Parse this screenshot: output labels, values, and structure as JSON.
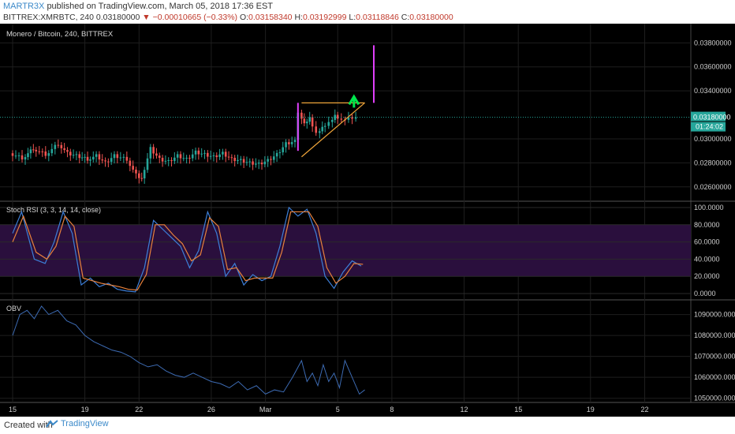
{
  "header": {
    "author": "MARTR3X",
    "published": "published on TradingView.com, March 05, 2018 17:36 EST",
    "symbol": "BITTREX:XMRBTC, 240",
    "last": "0.03180000",
    "change": "−0.00010665 (−0.33%)",
    "open": "0.03158340",
    "high": "0.03192999",
    "low": "0.03118846",
    "close": "0.03180000",
    "o_label": "O:",
    "h_label": "H:",
    "l_label": "L:",
    "c_label": "C:"
  },
  "footer": {
    "created": "Created with",
    "brand": "TradingView"
  },
  "chart_data": [
    {
      "type": "candlestick",
      "title": "Monero / Bitcoin, 240, BITTREX",
      "y_tick_labels": [
        "0.03800000",
        "0.03600000",
        "0.03400000",
        "0.03000000",
        "0.02800000",
        "0.02600000"
      ],
      "y_ticks": [
        0.038,
        0.036,
        0.034,
        0.03,
        0.028,
        0.026
      ],
      "ylim": [
        0.0248,
        0.0396
      ],
      "last_price_label": "0.03180000",
      "last_price": 0.0318,
      "countdown": "01:24:02",
      "x_labels": [
        "15",
        "19",
        "22",
        "26",
        "Mar",
        "5",
        "8",
        "12",
        "15",
        "19",
        "22"
      ],
      "x_day_index": [
        0,
        4,
        7,
        11,
        14,
        18,
        21,
        25,
        28,
        32,
        35
      ],
      "colors": {
        "up": "#26a69a",
        "down": "#ef5350",
        "triangle": "#f0a53a",
        "arrow": "#00e64d",
        "marker": "#e040fb"
      },
      "close_path": [
        [
          0,
          0.0288
        ],
        [
          0.7,
          0.0284
        ],
        [
          1.3,
          0.0292
        ],
        [
          2.0,
          0.0287
        ],
        [
          2.7,
          0.0296
        ],
        [
          3.2,
          0.0288
        ],
        [
          3.7,
          0.0286
        ],
        [
          4.3,
          0.0283
        ],
        [
          4.8,
          0.0286
        ],
        [
          5.3,
          0.028
        ],
        [
          5.8,
          0.0286
        ],
        [
          6.5,
          0.0283
        ],
        [
          7.0,
          0.027
        ],
        [
          7.3,
          0.0267
        ],
        [
          7.8,
          0.0292
        ],
        [
          8.3,
          0.0283
        ],
        [
          8.8,
          0.0281
        ],
        [
          9.3,
          0.0286
        ],
        [
          9.8,
          0.0283
        ],
        [
          10.3,
          0.0289
        ],
        [
          10.8,
          0.0287
        ],
        [
          11.3,
          0.0285
        ],
        [
          11.8,
          0.0288
        ],
        [
          12.3,
          0.0283
        ],
        [
          12.8,
          0.0282
        ],
        [
          13.3,
          0.028
        ],
        [
          13.8,
          0.0279
        ],
        [
          14.3,
          0.0282
        ],
        [
          14.8,
          0.0287
        ],
        [
          15.3,
          0.0296
        ],
        [
          15.8,
          0.0298
        ],
        [
          16.0,
          0.0323
        ],
        [
          16.3,
          0.0313
        ],
        [
          16.6,
          0.0318
        ],
        [
          17.0,
          0.0305
        ],
        [
          17.3,
          0.031
        ],
        [
          17.7,
          0.0314
        ],
        [
          18.0,
          0.032
        ],
        [
          18.4,
          0.0316
        ],
        [
          18.8,
          0.0318
        ]
      ],
      "triangle": {
        "upper": [
          [
            16.0,
            0.033
          ],
          [
            19.5,
            0.033
          ]
        ],
        "lower": [
          [
            16.0,
            0.0285
          ],
          [
            19.5,
            0.033
          ]
        ]
      },
      "spike_marker": {
        "x": 20.0,
        "from": 0.033,
        "to": 0.0378
      },
      "spike_marker_left": {
        "x": 15.8,
        "from": 0.029,
        "to": 0.033
      }
    },
    {
      "type": "line",
      "title": "Stoch RSI (3, 3, 14, 14, close)",
      "y_tick_labels": [
        "100.0000",
        "80.0000",
        "60.0000",
        "40.0000",
        "20.0000",
        "0.0000"
      ],
      "y_ticks": [
        100,
        80,
        60,
        40,
        20,
        0
      ],
      "ylim": [
        0,
        100
      ],
      "band": [
        20,
        80
      ],
      "series": [
        {
          "color": "#3d7fd9",
          "points": [
            [
              0,
              70
            ],
            [
              0.5,
              95
            ],
            [
              1.2,
              40
            ],
            [
              1.8,
              35
            ],
            [
              2.3,
              60
            ],
            [
              2.8,
              95
            ],
            [
              3.3,
              70
            ],
            [
              3.8,
              10
            ],
            [
              4.3,
              18
            ],
            [
              4.8,
              8
            ],
            [
              5.3,
              12
            ],
            [
              5.8,
              5
            ],
            [
              6.3,
              3
            ],
            [
              6.8,
              2
            ],
            [
              7.3,
              30
            ],
            [
              7.8,
              85
            ],
            [
              8.3,
              75
            ],
            [
              8.8,
              65
            ],
            [
              9.3,
              55
            ],
            [
              9.8,
              30
            ],
            [
              10.3,
              50
            ],
            [
              10.8,
              95
            ],
            [
              11.3,
              70
            ],
            [
              11.8,
              20
            ],
            [
              12.3,
              35
            ],
            [
              12.8,
              10
            ],
            [
              13.3,
              22
            ],
            [
              13.8,
              15
            ],
            [
              14.3,
              20
            ],
            [
              14.8,
              55
            ],
            [
              15.3,
              100
            ],
            [
              15.8,
              90
            ],
            [
              16.3,
              98
            ],
            [
              16.8,
              70
            ],
            [
              17.3,
              20
            ],
            [
              17.8,
              6
            ],
            [
              18.3,
              25
            ],
            [
              18.8,
              38
            ],
            [
              19.3,
              32
            ]
          ]
        },
        {
          "color": "#e8813c",
          "points": [
            [
              0,
              60
            ],
            [
              0.6,
              90
            ],
            [
              1.3,
              48
            ],
            [
              1.9,
              40
            ],
            [
              2.4,
              55
            ],
            [
              2.9,
              90
            ],
            [
              3.4,
              78
            ],
            [
              3.9,
              18
            ],
            [
              4.4,
              15
            ],
            [
              4.9,
              12
            ],
            [
              5.4,
              10
            ],
            [
              5.9,
              8
            ],
            [
              6.4,
              5
            ],
            [
              6.9,
              4
            ],
            [
              7.4,
              22
            ],
            [
              7.9,
              80
            ],
            [
              8.4,
              80
            ],
            [
              8.9,
              68
            ],
            [
              9.4,
              58
            ],
            [
              9.9,
              38
            ],
            [
              10.4,
              45
            ],
            [
              10.9,
              88
            ],
            [
              11.4,
              78
            ],
            [
              11.9,
              28
            ],
            [
              12.4,
              30
            ],
            [
              12.9,
              15
            ],
            [
              13.4,
              18
            ],
            [
              13.9,
              18
            ],
            [
              14.4,
              18
            ],
            [
              14.9,
              48
            ],
            [
              15.4,
              95
            ],
            [
              15.9,
              95
            ],
            [
              16.4,
              95
            ],
            [
              16.9,
              78
            ],
            [
              17.4,
              30
            ],
            [
              17.9,
              12
            ],
            [
              18.4,
              20
            ],
            [
              18.9,
              35
            ],
            [
              19.4,
              34
            ]
          ]
        }
      ]
    },
    {
      "type": "line",
      "title": "OBV",
      "y_tick_labels": [
        "1090000.0000",
        "1080000.0000",
        "1070000.0000",
        "1060000.0000",
        "1050000.0000"
      ],
      "y_ticks": [
        1090000,
        1080000,
        1070000,
        1060000,
        1050000
      ],
      "ylim": [
        1048000,
        1097000
      ],
      "series": [
        {
          "color": "#3d6bb3",
          "points": [
            [
              0,
              1080000
            ],
            [
              0.4,
              1090000
            ],
            [
              0.8,
              1092000
            ],
            [
              1.2,
              1088000
            ],
            [
              1.6,
              1094000
            ],
            [
              2.0,
              1090000
            ],
            [
              2.5,
              1092000
            ],
            [
              3.0,
              1087000
            ],
            [
              3.5,
              1085000
            ],
            [
              4.0,
              1080000
            ],
            [
              4.5,
              1077000
            ],
            [
              5.0,
              1075000
            ],
            [
              5.5,
              1073000
            ],
            [
              6.0,
              1072000
            ],
            [
              6.5,
              1070000
            ],
            [
              7.0,
              1067000
            ],
            [
              7.5,
              1065000
            ],
            [
              8.0,
              1066000
            ],
            [
              8.5,
              1063000
            ],
            [
              9.0,
              1061000
            ],
            [
              9.5,
              1060000
            ],
            [
              10.0,
              1062000
            ],
            [
              10.5,
              1060000
            ],
            [
              11.0,
              1058000
            ],
            [
              11.5,
              1057000
            ],
            [
              12.0,
              1055000
            ],
            [
              12.5,
              1058000
            ],
            [
              13.0,
              1054000
            ],
            [
              13.5,
              1056000
            ],
            [
              14.0,
              1052000
            ],
            [
              14.5,
              1054000
            ],
            [
              15.0,
              1053000
            ],
            [
              15.5,
              1060000
            ],
            [
              16.0,
              1068000
            ],
            [
              16.3,
              1058000
            ],
            [
              16.6,
              1062000
            ],
            [
              16.9,
              1056000
            ],
            [
              17.2,
              1066000
            ],
            [
              17.5,
              1058000
            ],
            [
              17.8,
              1062000
            ],
            [
              18.1,
              1055000
            ],
            [
              18.4,
              1068000
            ],
            [
              18.8,
              1060000
            ],
            [
              19.2,
              1052000
            ],
            [
              19.5,
              1054000
            ]
          ]
        }
      ]
    }
  ]
}
